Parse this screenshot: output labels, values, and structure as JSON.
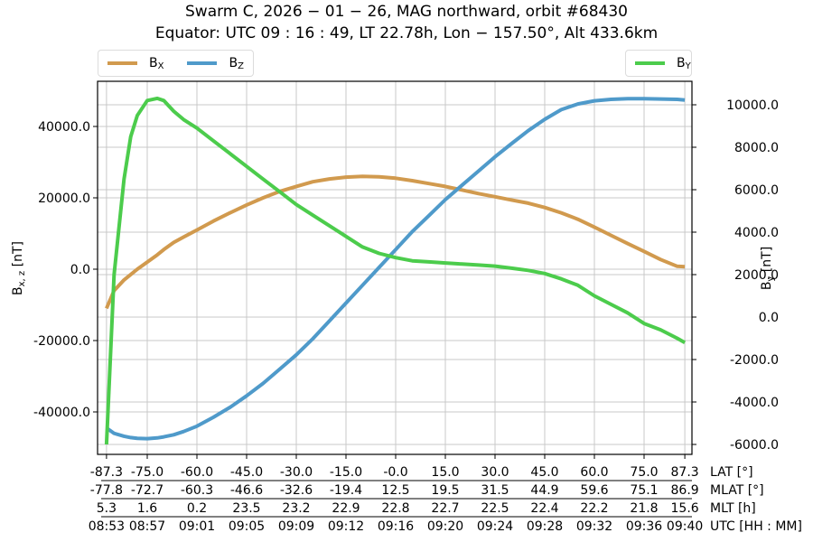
{
  "header": {
    "title_line1": "Swarm C,  2026 − 01 − 26,  MAG northward,  orbit #68430",
    "title_line2": "Equator:  UTC 09 : 16 : 49,  LT 22.78h,  Lon  − 157.50°,  Alt 433.6km"
  },
  "legend": {
    "left": [
      {
        "label": "B",
        "sub": "X",
        "color": "#d19a4e"
      },
      {
        "label": "B",
        "sub": "Z",
        "color": "#4f9aca"
      }
    ],
    "right": [
      {
        "label": "B",
        "sub": "Y",
        "color": "#4ccc4c"
      }
    ]
  },
  "axes": {
    "left_label": "B",
    "left_label_sub": "x, z",
    "left_label_unit": " [nT]",
    "right_label": "B",
    "right_label_sub": "y",
    "right_label_unit": " [nT]",
    "left_ticks": [
      "40000.0",
      "20000.0",
      "0.0",
      "-20000.0",
      "-40000.0"
    ],
    "right_ticks": [
      "10000.0",
      "8000.0",
      "6000.0",
      "4000.0",
      "2000.0",
      "0.0",
      "-2000.0",
      "-4000.0",
      "-6000.0"
    ],
    "x_rows": [
      {
        "name": "LAT [°]",
        "values": [
          "-87.3",
          "-75.0",
          "-60.0",
          "-45.0",
          "-30.0",
          "-15.0",
          "-0.0",
          "15.0",
          "30.0",
          "45.0",
          "60.0",
          "75.0",
          "87.3"
        ]
      },
      {
        "name": "MLAT [°]",
        "values": [
          "-77.8",
          "-72.7",
          "-60.3",
          "-46.6",
          "-32.6",
          "-19.4",
          "12.5",
          "19.5",
          "31.5",
          "44.9",
          "59.6",
          "75.1",
          "86.9"
        ]
      },
      {
        "name": "MLT [h]",
        "values": [
          "5.3",
          "1.6",
          "0.2",
          "23.5",
          "23.2",
          "22.9",
          "22.8",
          "22.7",
          "22.5",
          "22.4",
          "22.2",
          "21.8",
          "15.6"
        ]
      },
      {
        "name": "UTC [HH : MM]",
        "values": [
          "08:53",
          "08:57",
          "09:01",
          "09:05",
          "09:09",
          "09:12",
          "09:16",
          "09:20",
          "09:24",
          "09:28",
          "09:32",
          "09:36",
          "09:40"
        ]
      }
    ]
  },
  "chart_data": {
    "type": "line",
    "title": "Swarm C, 2026-01-26, MAG northward, orbit #68430 — Equator: UTC 09:16:49, LT 22.78h, Lon -157.50°, Alt 433.6km",
    "xlabel": "LAT [°] / MLAT [°] / MLT [h] / UTC [HH:MM]",
    "ylabel_left": "B_x,z [nT]",
    "ylabel_right": "B_y [nT]",
    "x": [
      -87.3,
      -85,
      -82,
      -80,
      -78,
      -75,
      -72,
      -70,
      -67,
      -64,
      -60,
      -55,
      -50,
      -45,
      -40,
      -35,
      -30,
      -25,
      -20,
      -15,
      -10,
      -5,
      0,
      5,
      10,
      15,
      20,
      25,
      30,
      35,
      40,
      45,
      50,
      55,
      60,
      65,
      70,
      75,
      80,
      85,
      87.3
    ],
    "series": [
      {
        "name": "Bx",
        "axis": "left",
        "color": "#d19a4e",
        "values": [
          -11000,
          -6000,
          -3000,
          -1500,
          0,
          2000,
          4000,
          5500,
          7500,
          9000,
          11000,
          13500,
          15800,
          18000,
          20000,
          21800,
          23200,
          24500,
          25300,
          25800,
          26000,
          25900,
          25500,
          24800,
          24000,
          23200,
          22200,
          21200,
          20300,
          19400,
          18500,
          17300,
          15800,
          14000,
          11800,
          9500,
          7200,
          5000,
          2700,
          800,
          700
        ]
      },
      {
        "name": "Bz",
        "axis": "left",
        "color": "#4f9aca",
        "values": [
          -44500,
          -46000,
          -46800,
          -47200,
          -47400,
          -47500,
          -47300,
          -47000,
          -46400,
          -45500,
          -44000,
          -41500,
          -38700,
          -35500,
          -32000,
          -28000,
          -24000,
          -19500,
          -14500,
          -9500,
          -4500,
          500,
          5500,
          10500,
          15000,
          19500,
          23500,
          27500,
          31500,
          35200,
          38800,
          42000,
          44700,
          46300,
          47200,
          47600,
          47800,
          47800,
          47700,
          47600,
          47400
        ]
      },
      {
        "name": "By",
        "axis": "right",
        "color": "#4ccc4c",
        "values": [
          -6000,
          2000,
          6500,
          8500,
          9500,
          10200,
          10300,
          10200,
          9700,
          9300,
          8900,
          8300,
          7700,
          7100,
          6500,
          5900,
          5300,
          4800,
          4300,
          3800,
          3300,
          3000,
          2800,
          2650,
          2600,
          2550,
          2500,
          2450,
          2400,
          2300,
          2200,
          2050,
          1800,
          1500,
          1000,
          600,
          200,
          -300,
          -600,
          -1000,
          -1200
        ]
      }
    ],
    "ylim_left": [
      -52000,
      52500
    ],
    "ylim_right": [
      -6500,
      11000
    ],
    "left_ticks": [
      -40000,
      -20000,
      0,
      20000,
      40000
    ],
    "right_ticks": [
      -6000,
      -4000,
      -2000,
      0,
      2000,
      4000,
      6000,
      8000,
      10000
    ],
    "x_ticks": [
      -87.3,
      -75,
      -60,
      -45,
      -30,
      -15,
      0,
      15,
      30,
      45,
      60,
      75,
      87.3
    ],
    "grid": true,
    "legend_position": "top (Bx, Bz left; By right)"
  }
}
